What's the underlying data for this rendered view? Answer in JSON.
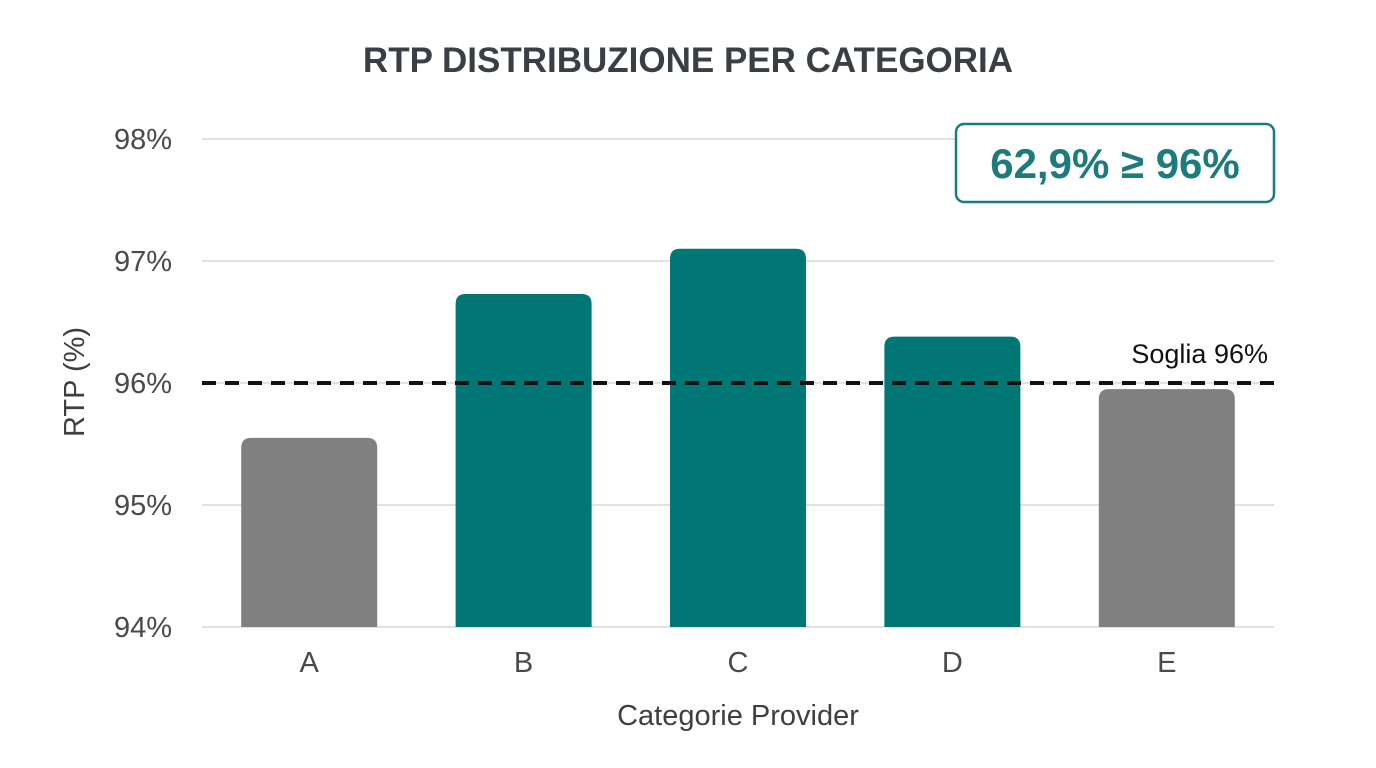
{
  "chart_data": {
    "type": "bar",
    "title": "RTP DISTRIBUZIONE PER CATEGORIA",
    "xlabel": "Categorie Provider",
    "ylabel": "RTP (%)",
    "categories": [
      "A",
      "B",
      "C",
      "D",
      "E"
    ],
    "values": [
      95.55,
      96.73,
      97.1,
      96.38,
      95.95
    ],
    "ylim": [
      94,
      98
    ],
    "yticks": [
      94,
      95,
      96,
      97,
      98
    ],
    "ytick_labels": [
      "94%",
      "95%",
      "96%",
      "97%",
      "98%"
    ],
    "grid": "horizontal",
    "threshold": {
      "value": 96,
      "label": "Soglia 96%",
      "style": "dashed"
    },
    "annotation": {
      "text": "62,9% ≥ 96%",
      "placement": "top-right"
    },
    "colors": {
      "above_threshold": "#007675",
      "below_threshold": "#808080",
      "grid": "#d9d9d9",
      "threshold_line": "#111111",
      "annotation": "#1d7b7b"
    }
  }
}
